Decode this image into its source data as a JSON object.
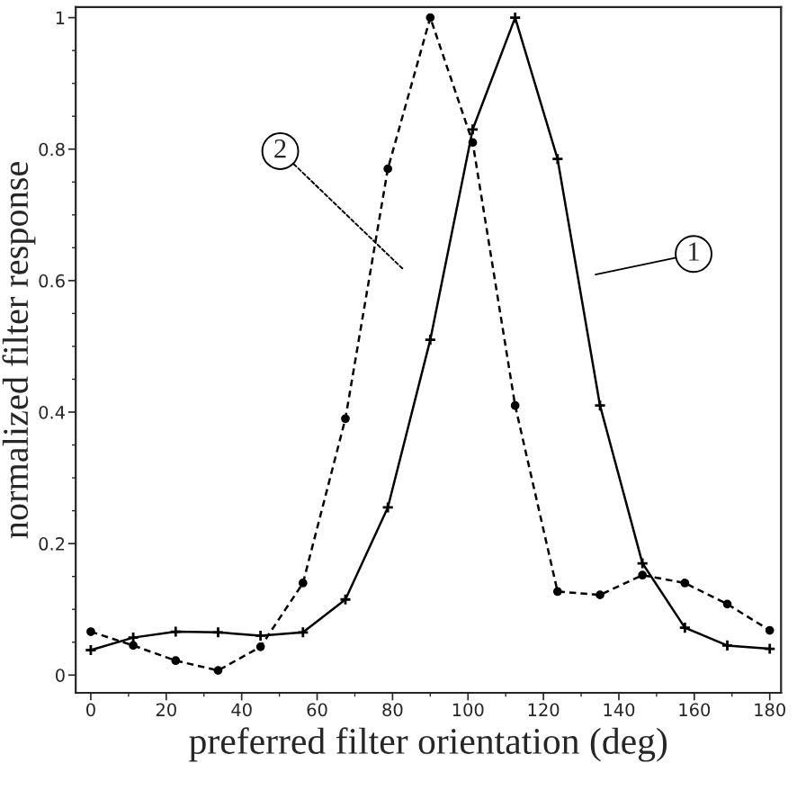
{
  "chart_data": {
    "type": "line",
    "xlabel": "preferred filter orientation (deg)",
    "ylabel": "normalized filter response",
    "x": [
      0,
      11.25,
      22.5,
      33.75,
      45,
      56.25,
      67.5,
      78.75,
      90,
      101.25,
      112.5,
      123.75,
      135,
      146.25,
      157.5,
      168.75,
      180
    ],
    "series": [
      {
        "color": "#000000",
        "line_style": "solid",
        "marker": "cross",
        "values": [
          0.038,
          0.057,
          0.066,
          0.065,
          0.06,
          0.065,
          0.115,
          0.255,
          0.51,
          0.83,
          1.0,
          0.785,
          0.41,
          0.17,
          0.072,
          0.045,
          0.04
        ]
      },
      {
        "color": "#000000",
        "line_style": "dashed",
        "marker": "circle",
        "values": [
          0.066,
          0.045,
          0.022,
          0.007,
          0.043,
          0.14,
          0.39,
          0.77,
          1.0,
          0.81,
          0.41,
          0.127,
          0.122,
          0.152,
          0.14,
          0.108,
          0.068
        ]
      }
    ],
    "annotations": [
      "1",
      "2"
    ],
    "xlim": [
      -4,
      183
    ],
    "ylim": [
      -0.027,
      1.016
    ],
    "xticks": [
      0,
      20,
      40,
      60,
      80,
      100,
      120,
      140,
      160,
      180
    ],
    "yticks": [
      0,
      0.2,
      0.4,
      0.6,
      0.8,
      1
    ],
    "grid": false,
    "legend": false
  }
}
